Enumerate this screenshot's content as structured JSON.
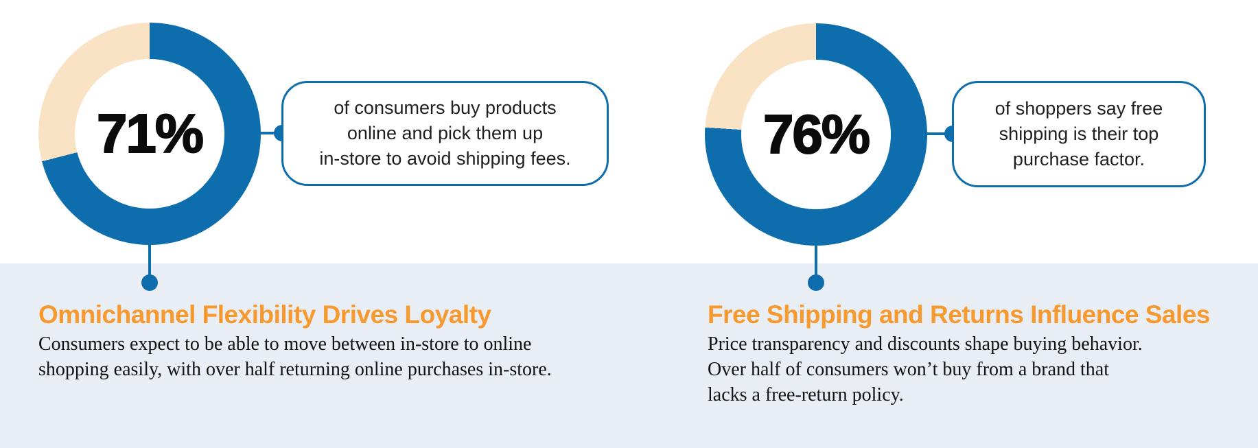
{
  "colors": {
    "accent_blue": "#0E6EAD",
    "remainder_peach": "#FAE3C4",
    "heading_orange": "#F6992E",
    "band_background": "#E9EDF4",
    "text_dark": "#1f1f1f"
  },
  "chart_data": [
    {
      "type": "donut",
      "title": "Omnichannel Flexibility Drives Loyalty",
      "value": 71,
      "center_label": "71%",
      "start_angle": "top, clockwise",
      "series": [
        {
          "name": "consumers who buy online and pick up in-store",
          "value": 71,
          "color": "#0E6EAD"
        },
        {
          "name": "remainder",
          "value": 29,
          "color": "#FAE3C4"
        }
      ],
      "callout": "of consumers buy products\nonline and pick them up\nin-store to avoid shipping fees.",
      "heading": "Omnichannel Flexibility Drives Loyalty",
      "body": "Consumers expect to be able to move between in-store to online\nshopping easily, with over half returning online purchases in-store."
    },
    {
      "type": "donut",
      "title": "Free Shipping and Returns Influence Sales",
      "value": 76,
      "center_label": "76%",
      "start_angle": "top, clockwise",
      "series": [
        {
          "name": "shoppers who say free shipping is their top purchase factor",
          "value": 76,
          "color": "#0E6EAD"
        },
        {
          "name": "remainder",
          "value": 24,
          "color": "#FAE3C4"
        }
      ],
      "callout": "of shoppers say free\nshipping is their top\npurchase factor.",
      "heading": "Free Shipping and Returns Influence Sales",
      "body": "Price transparency and discounts shape buying behavior.\nOver half of consumers won’t buy from a brand that\nlacks a free-return policy."
    }
  ]
}
